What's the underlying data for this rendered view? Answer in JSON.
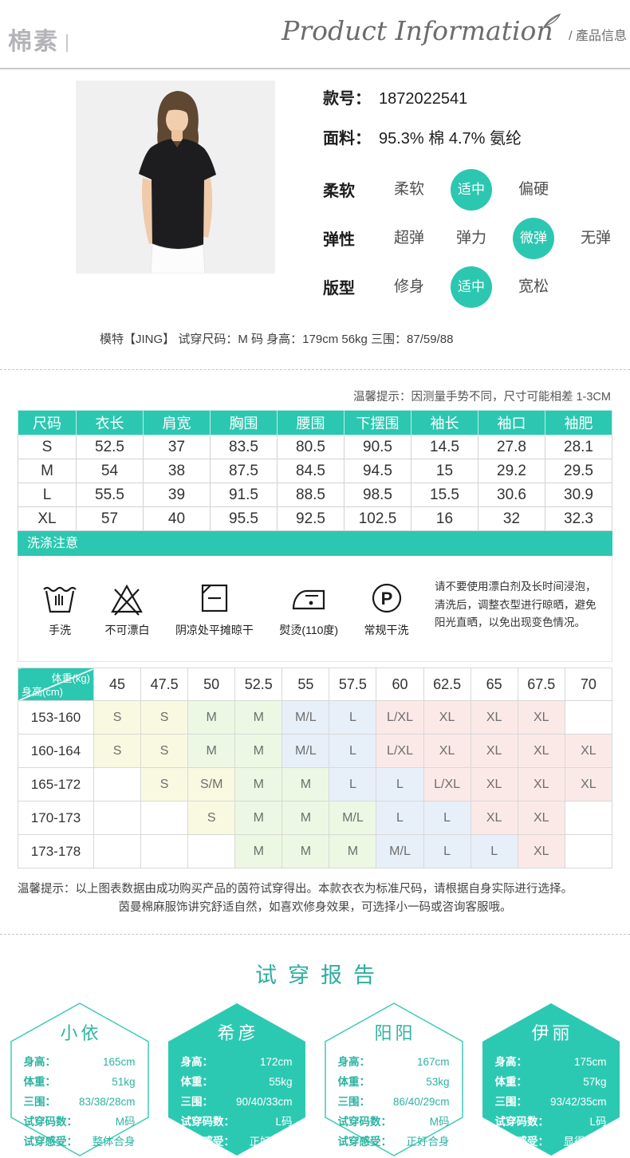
{
  "header": {
    "logo": "棉素",
    "title_en": "Product Information",
    "title_cn": "/ 產品信息"
  },
  "product": {
    "fields": [
      {
        "label": "款号：",
        "value": "1872022541"
      },
      {
        "label": "面料：",
        "value": "95.3% 棉 4.7% 氨纶"
      }
    ],
    "attributes": [
      {
        "label": "柔软",
        "options": [
          "柔软",
          "适中",
          "偏硬"
        ],
        "selected": 1
      },
      {
        "label": "弹性",
        "options": [
          "超弹",
          "弹力",
          "微弹",
          "无弹"
        ],
        "selected": 2
      },
      {
        "label": "版型",
        "options": [
          "修身",
          "适中",
          "宽松"
        ],
        "selected": 1
      }
    ],
    "model_info": "模特【JING】 试穿尺码：M 码  身高：179cm 56kg  三围：87/59/88"
  },
  "size_section": {
    "note": "温馨提示：因测量手势不同，尺寸可能相差 1-3CM",
    "table": {
      "headers": [
        "尺码",
        "衣长",
        "肩宽",
        "胸围",
        "腰围",
        "下摆围",
        "袖长",
        "袖口",
        "袖肥"
      ],
      "rows": [
        [
          "S",
          "52.5",
          "37",
          "83.5",
          "80.5",
          "90.5",
          "14.5",
          "27.8",
          "28.1"
        ],
        [
          "M",
          "54",
          "38",
          "87.5",
          "84.5",
          "94.5",
          "15",
          "29.2",
          "29.5"
        ],
        [
          "L",
          "55.5",
          "39",
          "91.5",
          "88.5",
          "98.5",
          "15.5",
          "30.6",
          "30.9"
        ],
        [
          "XL",
          "57",
          "40",
          "95.5",
          "92.5",
          "102.5",
          "16",
          "32",
          "32.3"
        ]
      ]
    }
  },
  "washing": {
    "title": "洗涤注意",
    "icons": [
      {
        "name": "hand-wash-icon",
        "label": "手洗"
      },
      {
        "name": "no-bleach-icon",
        "label": "不可漂白"
      },
      {
        "name": "dry-flat-shade-icon",
        "label": "阴凉处平摊晾干"
      },
      {
        "name": "iron-110-icon",
        "label": "熨烫(110度)"
      },
      {
        "name": "dry-clean-icon",
        "label": "常规干洗"
      }
    ],
    "note": "请不要使用漂白剂及长时间浸泡，清洗后，调整衣型进行晾晒，避免阳光直晒，以免出现变色情况。"
  },
  "size_matrix": {
    "corner_top": "体重(kg)",
    "corner_bottom": "身高(cm)",
    "weights": [
      "45",
      "47.5",
      "50",
      "52.5",
      "55",
      "57.5",
      "60",
      "62.5",
      "65",
      "67.5",
      "70"
    ],
    "rows": [
      {
        "height": "153-160",
        "cells": [
          {
            "v": "S",
            "c": "yellow"
          },
          {
            "v": "S",
            "c": "yellow"
          },
          {
            "v": "M",
            "c": "green"
          },
          {
            "v": "M",
            "c": "green"
          },
          {
            "v": "M/L",
            "c": "blue"
          },
          {
            "v": "L",
            "c": "blue"
          },
          {
            "v": "L/XL",
            "c": "pink"
          },
          {
            "v": "XL",
            "c": "pink"
          },
          {
            "v": "XL",
            "c": "pink"
          },
          {
            "v": "XL",
            "c": "pink"
          },
          {
            "v": "",
            "c": "white"
          }
        ]
      },
      {
        "height": "160-164",
        "cells": [
          {
            "v": "S",
            "c": "yellow"
          },
          {
            "v": "S",
            "c": "yellow"
          },
          {
            "v": "M",
            "c": "green"
          },
          {
            "v": "M",
            "c": "green"
          },
          {
            "v": "M/L",
            "c": "blue"
          },
          {
            "v": "L",
            "c": "blue"
          },
          {
            "v": "L/XL",
            "c": "pink"
          },
          {
            "v": "XL",
            "c": "pink"
          },
          {
            "v": "XL",
            "c": "pink"
          },
          {
            "v": "XL",
            "c": "pink"
          },
          {
            "v": "XL",
            "c": "pink"
          }
        ]
      },
      {
        "height": "165-172",
        "cells": [
          {
            "v": "",
            "c": "white"
          },
          {
            "v": "S",
            "c": "yellow"
          },
          {
            "v": "S/M",
            "c": "yellow"
          },
          {
            "v": "M",
            "c": "green"
          },
          {
            "v": "M",
            "c": "green"
          },
          {
            "v": "L",
            "c": "blue"
          },
          {
            "v": "L",
            "c": "blue"
          },
          {
            "v": "L/XL",
            "c": "pink"
          },
          {
            "v": "XL",
            "c": "pink"
          },
          {
            "v": "XL",
            "c": "pink"
          },
          {
            "v": "XL",
            "c": "pink"
          }
        ]
      },
      {
        "height": "170-173",
        "cells": [
          {
            "v": "",
            "c": "white"
          },
          {
            "v": "",
            "c": "white"
          },
          {
            "v": "S",
            "c": "yellow"
          },
          {
            "v": "M",
            "c": "green"
          },
          {
            "v": "M",
            "c": "green"
          },
          {
            "v": "M/L",
            "c": "green"
          },
          {
            "v": "L",
            "c": "blue"
          },
          {
            "v": "L",
            "c": "blue"
          },
          {
            "v": "XL",
            "c": "pink"
          },
          {
            "v": "XL",
            "c": "pink"
          },
          {
            "v": "",
            "c": "white"
          }
        ]
      },
      {
        "height": "173-178",
        "cells": [
          {
            "v": "",
            "c": "white"
          },
          {
            "v": "",
            "c": "white"
          },
          {
            "v": "",
            "c": "white"
          },
          {
            "v": "M",
            "c": "green"
          },
          {
            "v": "M",
            "c": "green"
          },
          {
            "v": "M",
            "c": "green"
          },
          {
            "v": "M/L",
            "c": "blue"
          },
          {
            "v": "L",
            "c": "blue"
          },
          {
            "v": "L",
            "c": "blue"
          },
          {
            "v": "XL",
            "c": "pink"
          },
          {
            "v": "",
            "c": "white"
          }
        ]
      }
    ]
  },
  "tips": {
    "line1": "温馨提示：以上图表数据由成功购买产品的茵符试穿得出。本款衣衣为标准尺码，请根据自身实际进行选择。",
    "line2": "茵曼棉麻服饰讲究舒适自然，如喜欢修身效果，可选择小一码或咨询客服哦。"
  },
  "fitting": {
    "title": "试穿报告",
    "row_labels": [
      "身高：",
      "体重：",
      "三围：",
      "试穿码数：",
      "试穿感受："
    ],
    "reports": [
      {
        "name": "小依",
        "style": "outline",
        "rows": [
          {
            "label": "身高：",
            "value": "165cm"
          },
          {
            "label": "体重：",
            "value": "51kg"
          },
          {
            "label": "三围：",
            "value": "83/38/28cm"
          },
          {
            "label": "试穿码数：",
            "value": "M码"
          },
          {
            "label": "试穿感受：",
            "value": "整体合身"
          }
        ]
      },
      {
        "name": "希彦",
        "style": "filled",
        "rows": [
          {
            "label": "身高：",
            "value": "172cm"
          },
          {
            "label": "体重：",
            "value": "55kg"
          },
          {
            "label": "三围：",
            "value": "90/40/33cm"
          },
          {
            "label": "试穿码数：",
            "value": "L码"
          },
          {
            "label": "试穿感受：",
            "value": "正好可穿"
          }
        ]
      },
      {
        "name": "阳阳",
        "style": "outline",
        "rows": [
          {
            "label": "身高：",
            "value": "167cm"
          },
          {
            "label": "体重：",
            "value": "53kg"
          },
          {
            "label": "三围：",
            "value": "86/40/29cm"
          },
          {
            "label": "试穿码数：",
            "value": "M码"
          },
          {
            "label": "试穿感受：",
            "value": "正好合身"
          }
        ]
      },
      {
        "name": "伊丽",
        "style": "filled",
        "rows": [
          {
            "label": "身高：",
            "value": "175cm"
          },
          {
            "label": "体重：",
            "value": "57kg"
          },
          {
            "label": "三围：",
            "value": "93/42/35cm"
          },
          {
            "label": "试穿码数：",
            "value": "L码"
          },
          {
            "label": "试穿感受：",
            "value": "显得修身"
          }
        ]
      }
    ]
  }
}
